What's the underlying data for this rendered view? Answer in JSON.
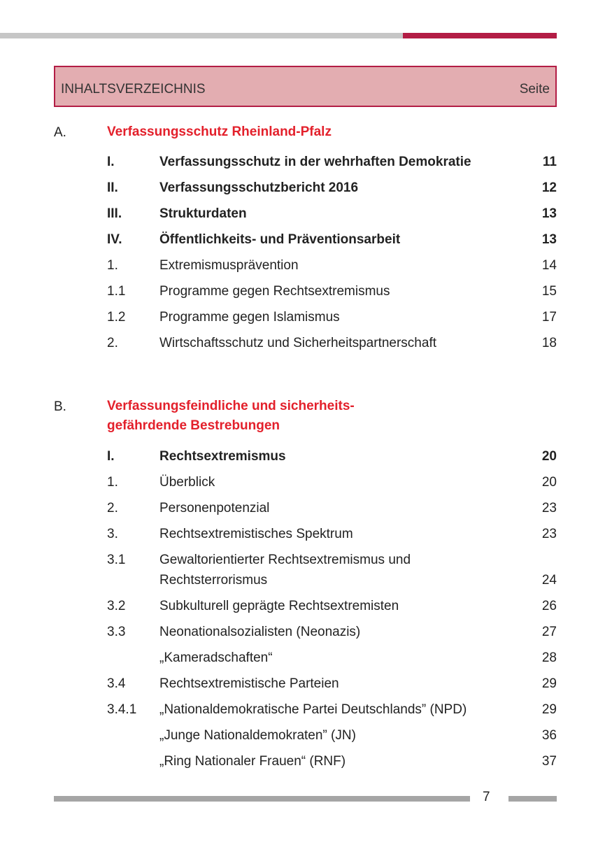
{
  "header": {
    "title": "INHALTSVERZEICHNIS",
    "page_label": "Seite"
  },
  "colors": {
    "accent": "#b31d45",
    "header_bg": "#e3adb1",
    "section_title": "#e3202b",
    "bar_gray": "#c6c6c6"
  },
  "sections": [
    {
      "letter": "A.",
      "title": "Verfassungsschutz Rheinland-Pfalz",
      "entries": [
        {
          "num": "I.",
          "title": "Verfassungsschutz in der wehrhaften Demokratie",
          "page": "11",
          "bold": true
        },
        {
          "num": "II.",
          "title": "Verfassungsschutzbericht 2016",
          "page": "12",
          "bold": true
        },
        {
          "num": "III.",
          "title": "Strukturdaten",
          "page": "13",
          "bold": true
        },
        {
          "num": "IV.",
          "title": "Öffentlichkeits- und Präventionsarbeit",
          "page": "13",
          "bold": true
        },
        {
          "num": "1.",
          "title": "Extremismusprävention",
          "page": "14",
          "bold": false
        },
        {
          "num": "1.1",
          "title": "Programme gegen Rechtsextremismus",
          "page": "15",
          "bold": false
        },
        {
          "num": "1.2",
          "title": "Programme gegen Islamismus",
          "page": "17",
          "bold": false
        },
        {
          "num": "2.",
          "title": "Wirtschaftsschutz und Sicherheitspartnerschaft",
          "page": "18",
          "bold": false
        }
      ]
    },
    {
      "letter": "B.",
      "title_line1": "Verfassungsfeindliche und sicherheits-",
      "title_line2": "gefährdende Bestrebungen",
      "entries": [
        {
          "num": "I.",
          "title": "Rechtsextremismus",
          "page": "20",
          "bold": true
        },
        {
          "num": "1.",
          "title": "Überblick",
          "page": "20",
          "bold": false
        },
        {
          "num": "2.",
          "title": "Personenpotenzial",
          "page": "23",
          "bold": false
        },
        {
          "num": "3.",
          "title": "Rechtsextremistisches Spektrum",
          "page": "23",
          "bold": false
        },
        {
          "num": "3.1",
          "title_line1": "Gewaltorientierter Rechtsextremismus und",
          "title_line2": "Rechtsterrorismus",
          "page": "24",
          "bold": false
        },
        {
          "num": "3.2",
          "title": "Subkulturell geprägte Rechtsextremisten",
          "page": "26",
          "bold": false
        },
        {
          "num": "3.3",
          "title": "Neonationalsozialisten (Neonazis)",
          "page": "27",
          "bold": false
        },
        {
          "num": "",
          "title": "„Kameradschaften“",
          "page": "28",
          "bold": false
        },
        {
          "num": "3.4",
          "title": "Rechtsextremistische Parteien",
          "page": "29",
          "bold": false
        },
        {
          "num": "3.4.1",
          "title": "„Nationaldemokratische Partei Deutschlands” (NPD)",
          "page": "29",
          "bold": false
        },
        {
          "num": "",
          "title": "„Junge Nationaldemokraten” (JN)",
          "page": "36",
          "bold": false
        },
        {
          "num": "",
          "title": "„Ring Nationaler Frauen“ (RNF)",
          "page": "37",
          "bold": false
        }
      ]
    }
  ],
  "footer": {
    "page_number": "7"
  }
}
